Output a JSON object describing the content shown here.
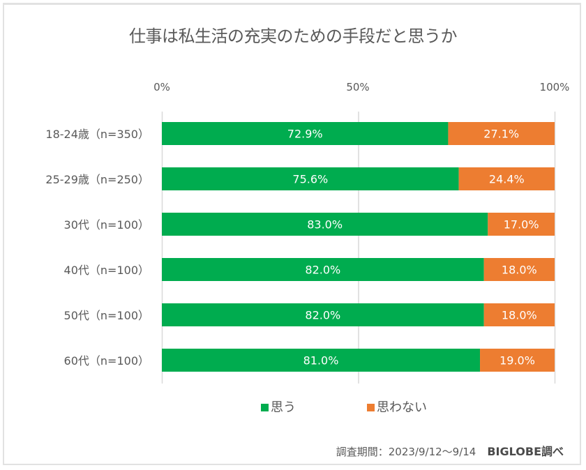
{
  "chart_data": {
    "type": "bar",
    "orientation": "horizontal",
    "stacked": "percent",
    "title": "仕事は私生活の充実のための手段だと思うか",
    "categories": [
      "18-24歳（n=350）",
      "25-29歳（n=250）",
      "30代（n=100）",
      "40代（n=100）",
      "50代（n=100）",
      "60代（n=100）"
    ],
    "series": [
      {
        "name": "思う",
        "color": "#00ac4f",
        "values": [
          72.9,
          75.6,
          83.0,
          82.0,
          82.0,
          81.0
        ],
        "labels": [
          "72.9%",
          "75.6%",
          "83.0%",
          "82.0%",
          "82.0%",
          "81.0%"
        ]
      },
      {
        "name": "思わない",
        "color": "#ed7d31",
        "values": [
          27.1,
          24.4,
          17.0,
          18.0,
          18.0,
          19.0
        ],
        "labels": [
          "27.1%",
          "24.4%",
          "17.0%",
          "18.0%",
          "18.0%",
          "19.0%"
        ]
      }
    ],
    "xlim": [
      0,
      100
    ],
    "xticks": [
      0,
      50,
      100
    ],
    "xtick_labels": [
      "0%",
      "50%",
      "100%"
    ],
    "grid": true,
    "legend_position": "bottom",
    "xlabel": "",
    "ylabel": ""
  },
  "footer": {
    "period": "調査期間：2023/9/12～9/14",
    "source": "BIGLOBE調べ"
  },
  "colors": {
    "gridline": "#d9d9d9",
    "text": "#595959",
    "label_text": "#ffffff"
  }
}
